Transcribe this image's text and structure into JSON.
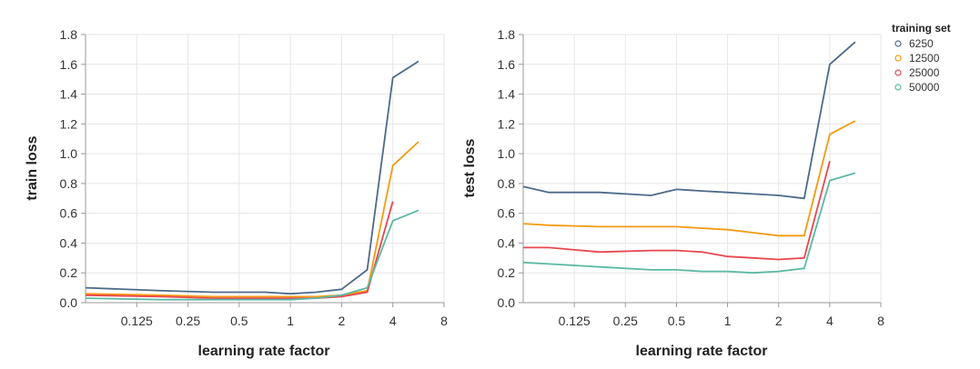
{
  "legend": {
    "title": "training set",
    "entries": [
      {
        "label": "6250",
        "color": "#4c6a8a"
      },
      {
        "label": "12500",
        "color": "#f59a12"
      },
      {
        "label": "25000",
        "color": "#e8474f"
      },
      {
        "label": "50000",
        "color": "#5bb8a4"
      }
    ]
  },
  "chart_data": [
    {
      "type": "line",
      "title": "",
      "xlabel": "learning rate factor",
      "ylabel": "train loss",
      "xscale": "log2",
      "xlim": [
        0.0625,
        8
      ],
      "xticks": [
        0.125,
        0.25,
        0.5,
        1,
        2,
        4,
        8
      ],
      "xtick_labels": [
        "0.125",
        "0.25",
        "0.5",
        "1",
        "2",
        "4",
        "8"
      ],
      "ylim": [
        0,
        1.8
      ],
      "yticks": [
        0.0,
        0.2,
        0.4,
        0.6,
        0.8,
        1.0,
        1.2,
        1.4,
        1.6,
        1.8
      ],
      "ytick_labels": [
        "0.0",
        "0.2",
        "0.4",
        "0.6",
        "0.8",
        "1.0",
        "1.2",
        "1.4",
        "1.6",
        "1.8"
      ],
      "x": [
        0.0625,
        0.177,
        0.354,
        0.707,
        1.0,
        1.414,
        2.0,
        2.828,
        4.0,
        5.657
      ],
      "series": [
        {
          "name": "6250",
          "values": [
            0.1,
            0.08,
            0.07,
            0.07,
            0.06,
            0.07,
            0.09,
            0.22,
            1.51,
            1.62
          ]
        },
        {
          "name": "12500",
          "values": [
            0.06,
            0.05,
            0.04,
            0.04,
            0.04,
            0.04,
            0.05,
            0.08,
            0.92,
            1.08
          ]
        },
        {
          "name": "25000",
          "values": [
            0.05,
            0.04,
            0.03,
            0.03,
            0.03,
            0.03,
            0.04,
            0.07,
            0.68,
            null
          ]
        },
        {
          "name": "50000",
          "values": [
            0.03,
            0.02,
            0.02,
            0.02,
            0.02,
            0.03,
            0.05,
            0.1,
            0.55,
            0.62
          ]
        }
      ]
    },
    {
      "type": "line",
      "title": "",
      "xlabel": "learning rate factor",
      "ylabel": "test loss",
      "xscale": "log2",
      "xlim": [
        0.0625,
        8
      ],
      "xticks": [
        0.125,
        0.25,
        0.5,
        1,
        2,
        4,
        8
      ],
      "xtick_labels": [
        "0.125",
        "0.25",
        "0.5",
        "1",
        "2",
        "4",
        "8"
      ],
      "ylim": [
        0,
        1.8
      ],
      "yticks": [
        0.0,
        0.2,
        0.4,
        0.6,
        0.8,
        1.0,
        1.2,
        1.4,
        1.6,
        1.8
      ],
      "ytick_labels": [
        "0.0",
        "0.2",
        "0.4",
        "0.6",
        "0.8",
        "1.0",
        "1.2",
        "1.4",
        "1.6",
        "1.8"
      ],
      "x": [
        0.0625,
        0.0884,
        0.177,
        0.354,
        0.5,
        0.707,
        1.0,
        1.414,
        2.0,
        2.828,
        4.0,
        5.657
      ],
      "series": [
        {
          "name": "6250",
          "values": [
            0.78,
            0.74,
            0.74,
            0.72,
            0.76,
            0.75,
            0.74,
            0.73,
            0.72,
            0.7,
            1.6,
            1.75
          ]
        },
        {
          "name": "12500",
          "values": [
            0.53,
            0.52,
            0.51,
            0.51,
            0.51,
            0.5,
            0.49,
            0.47,
            0.45,
            0.45,
            1.13,
            1.22
          ]
        },
        {
          "name": "25000",
          "values": [
            0.37,
            0.37,
            0.34,
            0.35,
            0.35,
            0.34,
            0.31,
            0.3,
            0.29,
            0.3,
            0.95,
            null
          ]
        },
        {
          "name": "50000",
          "values": [
            0.27,
            0.26,
            0.24,
            0.22,
            0.22,
            0.21,
            0.21,
            0.2,
            0.21,
            0.23,
            0.82,
            0.87
          ]
        }
      ]
    }
  ]
}
